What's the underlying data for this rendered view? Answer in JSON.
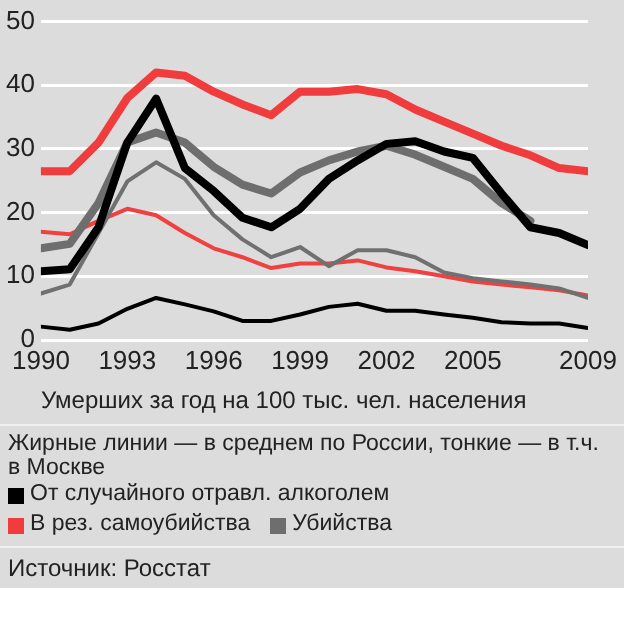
{
  "chart_data": {
    "type": "line",
    "xlabel": "Умерших за год на 100 тыс. чел. населения",
    "x": [
      1990,
      1991,
      1992,
      1993,
      1994,
      1995,
      1996,
      1997,
      1998,
      1999,
      2000,
      2001,
      2002,
      2003,
      2004,
      2005,
      2006,
      2007,
      2008,
      2009
    ],
    "xlim": [
      1990,
      2009
    ],
    "xticks": [
      1990,
      1993,
      1996,
      1999,
      2002,
      2005,
      2009
    ],
    "ylim": [
      0,
      50
    ],
    "yticks": [
      0,
      10,
      20,
      30,
      40,
      50
    ],
    "grid": "y",
    "legend": "bottom",
    "marker": "none",
    "series": [
      {
        "name": "От случайного отравл. алкоголем",
        "color": "#000000",
        "values": [
          10.8,
          11.1,
          17.7,
          31,
          37.9,
          27,
          23.4,
          19.2,
          17.7,
          20.6,
          25.3,
          28.2,
          30.8,
          31.2,
          29.6,
          28.6,
          23,
          17.7,
          16.8,
          14.9
        ]
      },
      {
        "name": "В рез. самоубийства",
        "color": "#f03c3c",
        "values": [
          26.5,
          26.5,
          31,
          38,
          42,
          41.5,
          39,
          37,
          35.3,
          39,
          39,
          39.4,
          38.6,
          36.2,
          34.3,
          32.4,
          30.5,
          29,
          27,
          26.5
        ]
      },
      {
        "name": "Убийства",
        "color": "#6e6e6e",
        "values": [
          14.4,
          15.1,
          21.5,
          31,
          32.6,
          31,
          27.2,
          24.4,
          23,
          26.3,
          28.2,
          29.6,
          30.5,
          29.1,
          27.2,
          25.3,
          21.5,
          18.7,
          null,
          null
        ]
      },
      {
        "color": "#707070",
        "values": [
          7.3,
          8.7,
          16.8,
          24.9,
          27.9,
          25.3,
          19.6,
          15.8,
          13,
          14.6,
          11.6,
          14.1,
          14.1,
          13,
          10.6,
          9.7,
          9.2,
          8.7,
          8.1,
          6.6
        ]
      },
      {
        "color": "#f04040",
        "values": [
          17,
          16.6,
          18.7,
          20.6,
          19.6,
          16.8,
          14.4,
          13,
          11.3,
          12,
          12,
          12.5,
          11.4,
          10.8,
          10,
          9.2,
          8.7,
          8.3,
          7.8,
          7
        ]
      },
      {
        "color": "#000000",
        "values": [
          2.1,
          1.6,
          2.6,
          4.9,
          6.6,
          5.6,
          4.5,
          3,
          3,
          4,
          5.2,
          5.7,
          4.6,
          4.6,
          4,
          3.5,
          2.8,
          2.6,
          2.6,
          1.9
        ]
      }
    ],
    "annotations": [
      "Жирные линии — в среднем по России, тонкие — в т.ч. в Москве",
      "Источник: Росстат"
    ]
  }
}
